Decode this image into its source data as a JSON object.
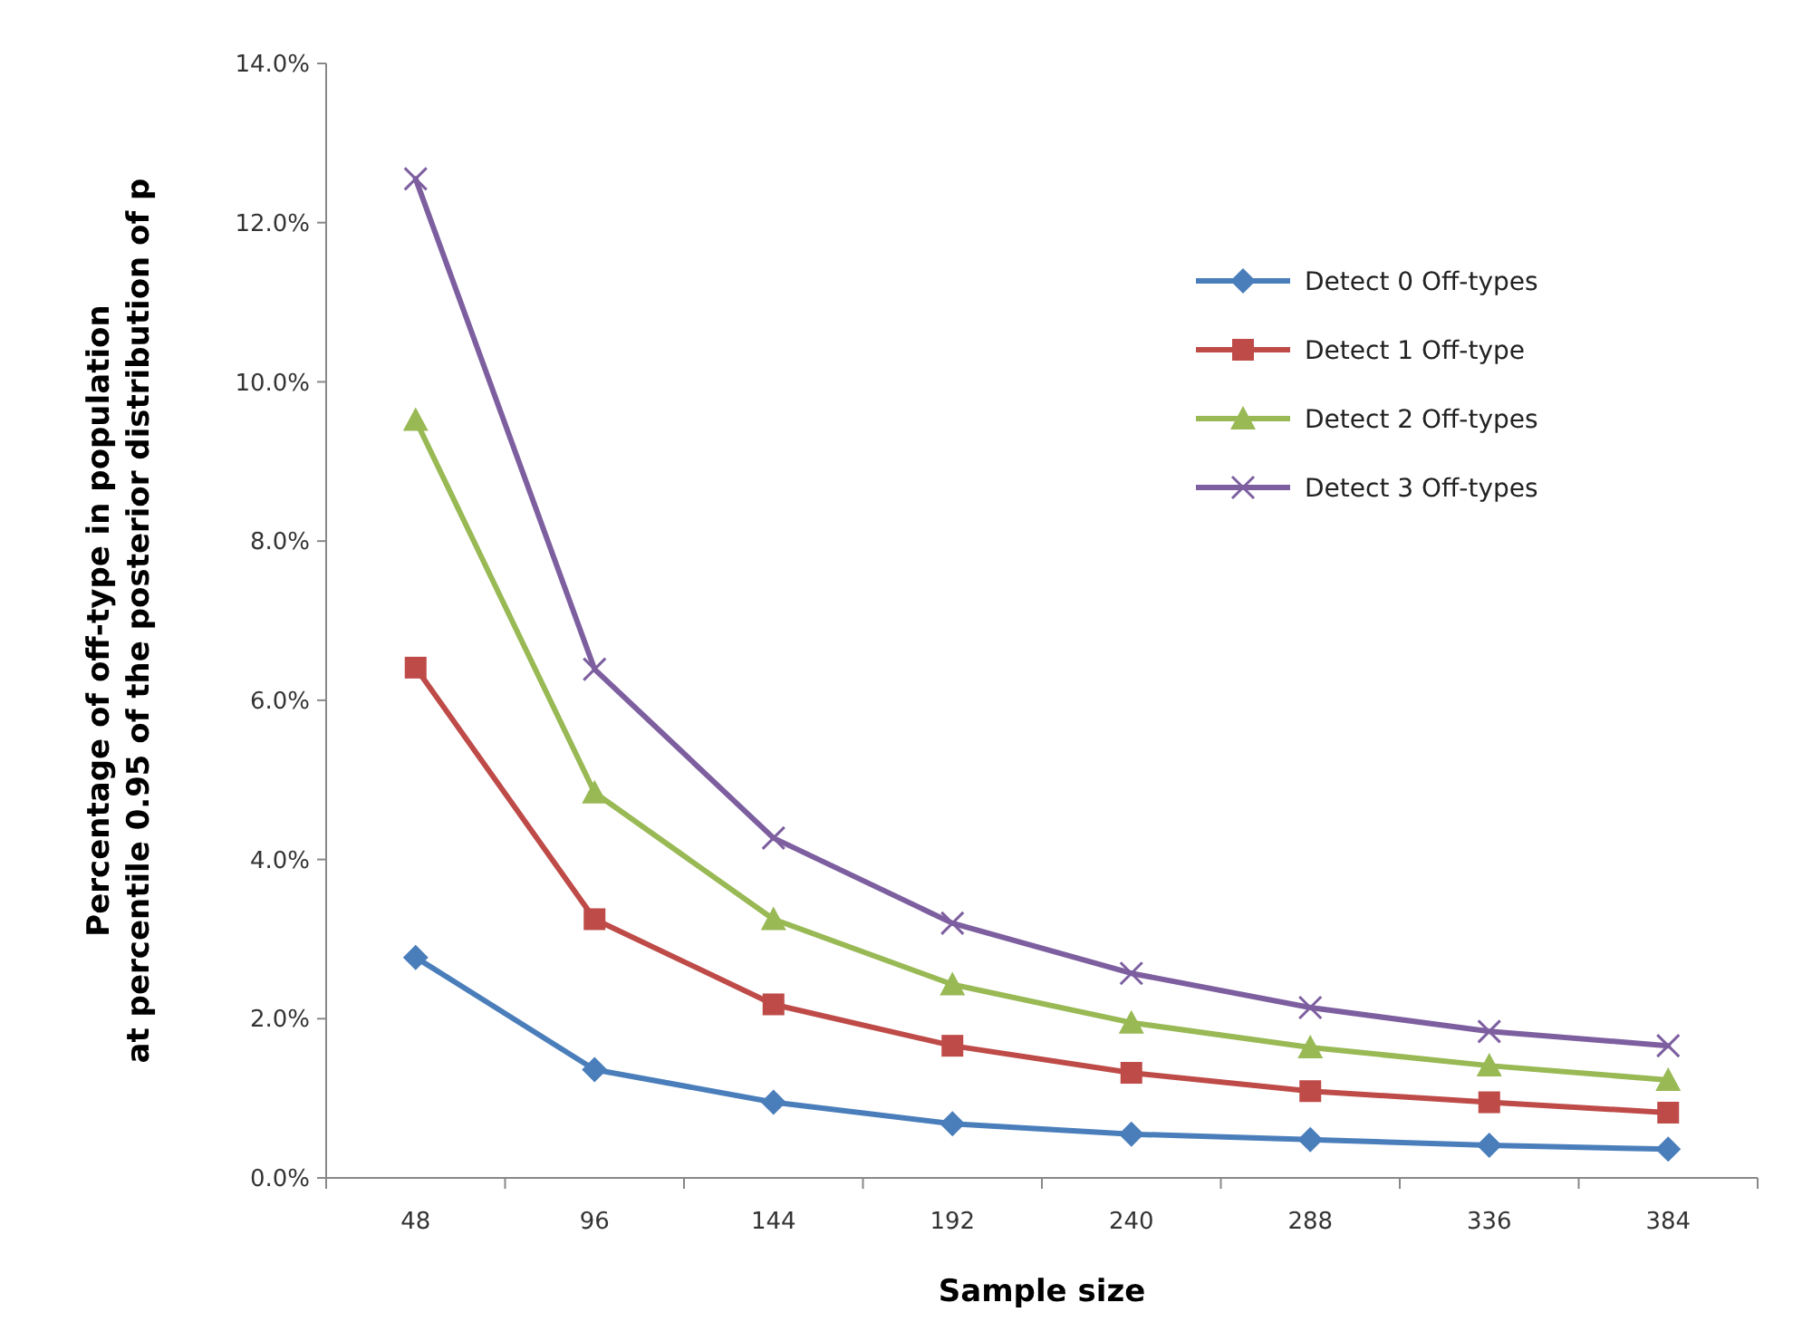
{
  "chart_data": {
    "type": "line",
    "xlabel": "Sample size",
    "ylabel": "Percentage of off-type in population\nat percentile 0.95 of the  posterior distribution of p",
    "categories": [
      "48",
      "96",
      "144",
      "192",
      "240",
      "288",
      "336",
      "384"
    ],
    "series": [
      {
        "name": "Detect 0 Off-types",
        "color": "#4a7ebb",
        "marker": "diamond",
        "values": [
          2.77,
          1.36,
          0.95,
          0.68,
          0.55,
          0.48,
          0.41,
          0.36
        ]
      },
      {
        "name": "Detect 1 Off-type",
        "color": "#be4b48",
        "marker": "square",
        "values": [
          6.41,
          3.25,
          2.18,
          1.66,
          1.32,
          1.09,
          0.95,
          0.82
        ]
      },
      {
        "name": "Detect 2 Off-types",
        "color": "#98b954",
        "marker": "triangle",
        "values": [
          9.52,
          4.84,
          3.25,
          2.43,
          1.95,
          1.64,
          1.41,
          1.23
        ]
      },
      {
        "name": "Detect 3 Off-types",
        "color": "#7d5fa0",
        "marker": "cross",
        "values": [
          12.55,
          6.39,
          4.27,
          3.2,
          2.57,
          2.14,
          1.84,
          1.66
        ]
      }
    ],
    "ylim": [
      0,
      14
    ],
    "yticks": [
      {
        "value": 0,
        "label": "0.0%"
      },
      {
        "value": 2,
        "label": "2.0%"
      },
      {
        "value": 4,
        "label": "4.0%"
      },
      {
        "value": 6,
        "label": "6.0%"
      },
      {
        "value": 8,
        "label": "8.0%"
      },
      {
        "value": 10,
        "label": "10.0%"
      },
      {
        "value": 12,
        "label": "12.0%"
      },
      {
        "value": 14,
        "label": "14.0%"
      }
    ],
    "legend": "top right",
    "line_style": "solid"
  }
}
